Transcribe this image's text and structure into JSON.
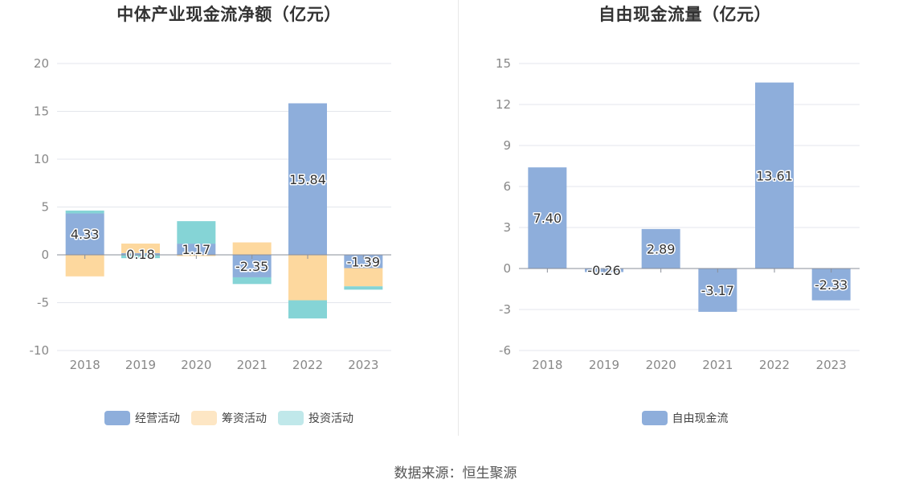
{
  "source_label": "数据来源：恒生聚源",
  "chart_data": [
    {
      "type": "bar",
      "stacked": true,
      "title": "中体产业现金流净额（亿元）",
      "categories": [
        "2018",
        "2019",
        "2020",
        "2021",
        "2022",
        "2023"
      ],
      "ylim": [
        -10,
        20
      ],
      "yticks": [
        -10,
        -5,
        0,
        5,
        10,
        15,
        20
      ],
      "grid": true,
      "legend_position": "bottom",
      "series": [
        {
          "name": "经营活动",
          "color": "#8eaedb",
          "values": [
            4.33,
            0.18,
            1.17,
            -2.35,
            15.84,
            -1.39
          ]
        },
        {
          "name": "筹资活动",
          "color": "#fdd89e",
          "values": [
            -2.25,
            1.0,
            -0.1,
            1.3,
            -4.75,
            -1.9
          ]
        },
        {
          "name": "投资活动",
          "color": "#85d4d6",
          "values": [
            0.3,
            -0.35,
            2.35,
            -0.7,
            -1.9,
            -0.35
          ]
        }
      ],
      "data_labels": [
        "4.33",
        "0.18",
        "1.17",
        "-2.35",
        "15.84",
        "-1.39"
      ],
      "legend_colors": [
        "#8eaedb",
        "#fde6c4",
        "#c0e8ea"
      ]
    },
    {
      "type": "bar",
      "title": "自由现金流量（亿元）",
      "categories": [
        "2018",
        "2019",
        "2020",
        "2021",
        "2022",
        "2023"
      ],
      "ylim": [
        -6,
        15
      ],
      "yticks": [
        -6,
        -3,
        0,
        3,
        6,
        9,
        12,
        15
      ],
      "grid": true,
      "legend_position": "bottom",
      "series": [
        {
          "name": "自由现金流",
          "color": "#8eaedb",
          "values": [
            7.4,
            -0.26,
            2.89,
            -3.17,
            13.61,
            -2.33
          ]
        }
      ],
      "data_labels": [
        "7.40",
        "-0.26",
        "2.89",
        "-3.17",
        "13.61",
        "-2.33"
      ]
    }
  ]
}
